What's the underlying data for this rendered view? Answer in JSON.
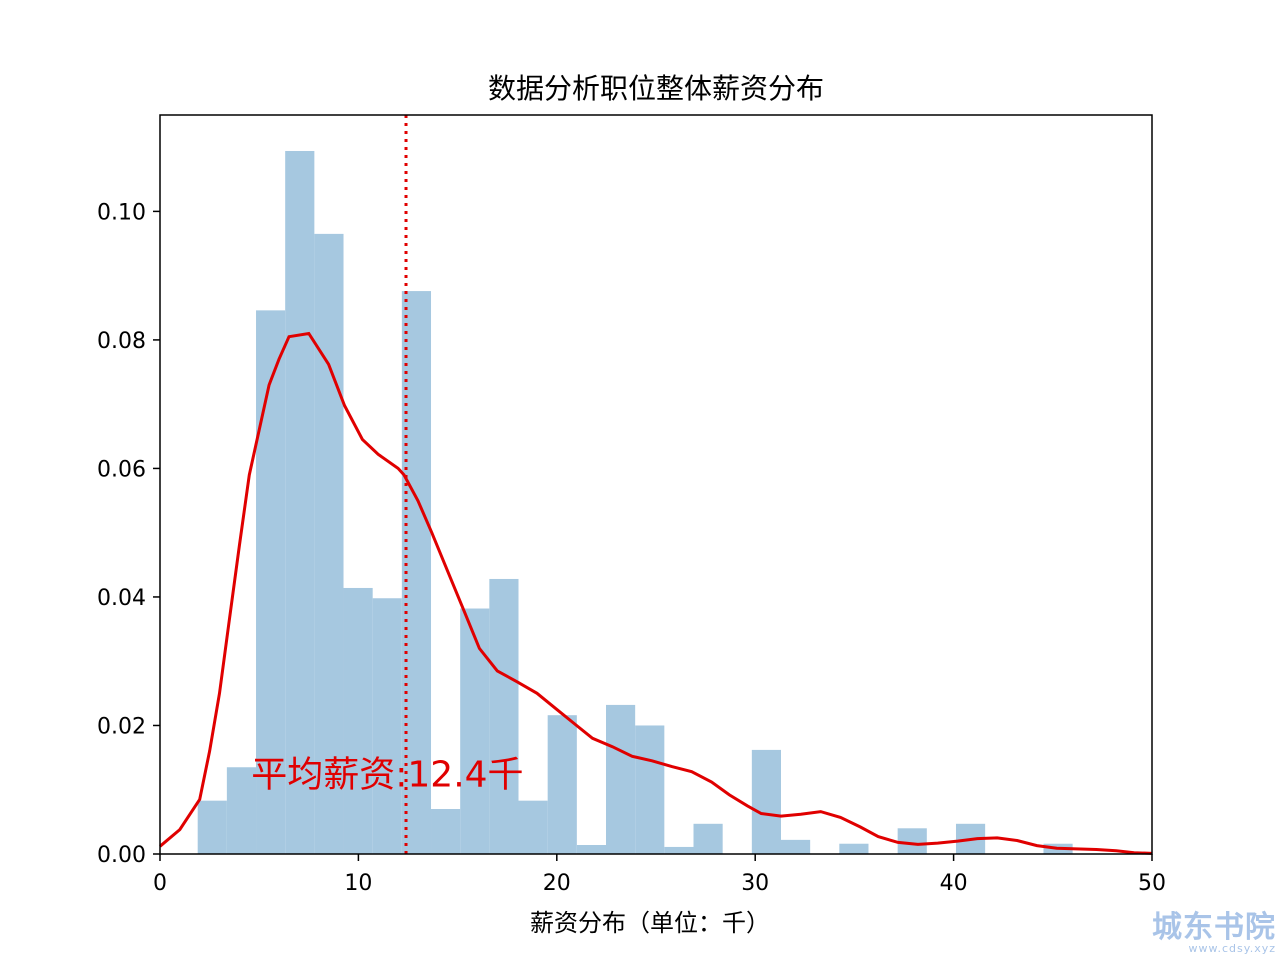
{
  "chart_data": {
    "type": "bar",
    "title": "数据分析职位整体薪资分布",
    "xlabel": "薪资分布（单位：千）",
    "ylabel": "",
    "xlim": [
      0,
      50
    ],
    "ylim": [
      0,
      0.115
    ],
    "xticks": [
      "0",
      "10",
      "20",
      "30",
      "40",
      "50"
    ],
    "yticks": [
      "0.00",
      "0.02",
      "0.04",
      "0.06",
      "0.08",
      "0.10"
    ],
    "grid": false,
    "legend": "none",
    "histogram": {
      "bin_width": 1.47,
      "bins": [
        {
          "x0": 1.9,
          "x1": 3.37,
          "density": 0.0083
        },
        {
          "x0": 3.37,
          "x1": 4.84,
          "density": 0.0135
        },
        {
          "x0": 4.84,
          "x1": 6.31,
          "density": 0.0846
        },
        {
          "x0": 6.31,
          "x1": 7.78,
          "density": 0.1094
        },
        {
          "x0": 7.78,
          "x1": 9.25,
          "density": 0.0965
        },
        {
          "x0": 9.25,
          "x1": 10.72,
          "density": 0.0414
        },
        {
          "x0": 10.72,
          "x1": 12.19,
          "density": 0.0398
        },
        {
          "x0": 12.19,
          "x1": 13.66,
          "density": 0.0876
        },
        {
          "x0": 13.66,
          "x1": 15.13,
          "density": 0.007
        },
        {
          "x0": 15.13,
          "x1": 16.6,
          "density": 0.0382
        },
        {
          "x0": 16.6,
          "x1": 18.07,
          "density": 0.0428
        },
        {
          "x0": 18.07,
          "x1": 19.54,
          "density": 0.0083
        },
        {
          "x0": 19.54,
          "x1": 21.01,
          "density": 0.0216
        },
        {
          "x0": 21.01,
          "x1": 22.48,
          "density": 0.0014
        },
        {
          "x0": 22.48,
          "x1": 23.95,
          "density": 0.0232
        },
        {
          "x0": 23.95,
          "x1": 25.42,
          "density": 0.02
        },
        {
          "x0": 25.42,
          "x1": 26.89,
          "density": 0.0011
        },
        {
          "x0": 26.89,
          "x1": 28.36,
          "density": 0.0047
        },
        {
          "x0": 29.83,
          "x1": 31.3,
          "density": 0.0162
        },
        {
          "x0": 31.3,
          "x1": 32.77,
          "density": 0.0022
        },
        {
          "x0": 34.24,
          "x1": 35.71,
          "density": 0.0016
        },
        {
          "x0": 37.18,
          "x1": 38.65,
          "density": 0.004
        },
        {
          "x0": 40.12,
          "x1": 41.59,
          "density": 0.0047
        },
        {
          "x0": 44.53,
          "x1": 46.0,
          "density": 0.0016
        }
      ],
      "color": "#a6c8e0"
    },
    "kde": {
      "color": "#e00000",
      "points": [
        [
          0,
          0.0012
        ],
        [
          1,
          0.0038
        ],
        [
          2,
          0.0085
        ],
        [
          2.5,
          0.016
        ],
        [
          3,
          0.025
        ],
        [
          3.5,
          0.0365
        ],
        [
          4,
          0.048
        ],
        [
          4.5,
          0.059
        ],
        [
          5,
          0.066
        ],
        [
          5.5,
          0.073
        ],
        [
          6,
          0.077
        ],
        [
          6.5,
          0.0805
        ],
        [
          7.5,
          0.081
        ],
        [
          8.5,
          0.0762
        ],
        [
          9.3,
          0.0698
        ],
        [
          10.2,
          0.0645
        ],
        [
          11,
          0.0622
        ],
        [
          12,
          0.06
        ],
        [
          12.3,
          0.059
        ],
        [
          13,
          0.055
        ],
        [
          13.7,
          0.05
        ],
        [
          14.5,
          0.044
        ],
        [
          15.3,
          0.038
        ],
        [
          16.1,
          0.032
        ],
        [
          17,
          0.0285
        ],
        [
          18,
          0.0268
        ],
        [
          19,
          0.025
        ],
        [
          20,
          0.0225
        ],
        [
          21,
          0.02
        ],
        [
          21.8,
          0.018
        ],
        [
          22.8,
          0.0167
        ],
        [
          23.8,
          0.0152
        ],
        [
          24.8,
          0.0145
        ],
        [
          25.8,
          0.0136
        ],
        [
          26.8,
          0.0128
        ],
        [
          27.8,
          0.0112
        ],
        [
          28.7,
          0.0092
        ],
        [
          29.6,
          0.0075
        ],
        [
          30.3,
          0.0063
        ],
        [
          31.3,
          0.0059
        ],
        [
          32.3,
          0.0062
        ],
        [
          33.3,
          0.0066
        ],
        [
          34.3,
          0.0057
        ],
        [
          35.3,
          0.0042
        ],
        [
          36.2,
          0.0027
        ],
        [
          37.2,
          0.0018
        ],
        [
          38.2,
          0.0015
        ],
        [
          39.2,
          0.0017
        ],
        [
          40.2,
          0.002
        ],
        [
          41.2,
          0.0024
        ],
        [
          42.2,
          0.0025
        ],
        [
          43.2,
          0.0021
        ],
        [
          44.2,
          0.0013
        ],
        [
          45.2,
          0.0009
        ],
        [
          46.2,
          0.0008
        ],
        [
          47.2,
          0.0007
        ],
        [
          48.2,
          0.0005
        ],
        [
          49.1,
          0.0002
        ],
        [
          50,
          0.0001
        ]
      ]
    },
    "mean_line": {
      "x": 12.4,
      "color": "#e00000",
      "style": "dotted"
    },
    "annotation": {
      "text": "平均薪资:12.4千",
      "x": 4.6,
      "y": 0.0105,
      "color": "#e00000"
    }
  },
  "watermark": {
    "main": "城东书院",
    "sub": "www.cdsy.xyz"
  }
}
